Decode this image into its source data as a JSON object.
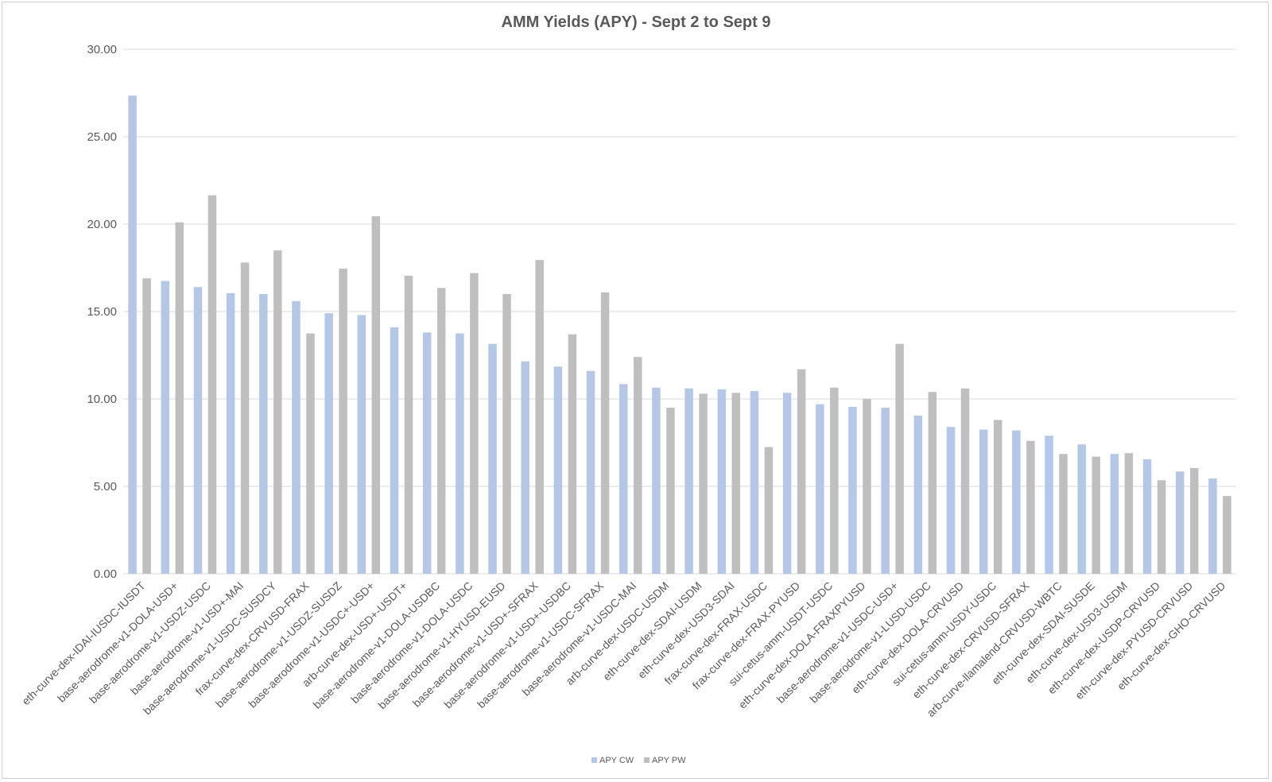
{
  "chart_data": {
    "type": "bar",
    "title": "AMM Yields (APY) - Sept 2 to Sept 9",
    "xlabel": "",
    "ylabel": "",
    "ylim": [
      0,
      30
    ],
    "yticks": [
      "0.00",
      "5.00",
      "10.00",
      "15.00",
      "20.00",
      "25.00",
      "30.00"
    ],
    "grid": true,
    "legend_position": "bottom",
    "categories": [
      "eth-curve-dex-IDAI-IUSDC-IUSDT",
      "base-aerodrome-v1-DOLA-USD+",
      "base-aerodrome-v1-USDZ-USDC",
      "base-aerodrome-v1-USD+-MAI",
      "base-aerodrome-v1-USDC-SUSDCY",
      "frax-curve-dex-CRVUSD-FRAX",
      "base-aerodrome-v1-USDZ-SUSDZ",
      "base-aerodrome-v1-USDC+-USD+",
      "arb-curve-dex-USD+-USDT+",
      "base-aerodrome-v1-DOLA-USDBC",
      "base-aerodrome-v1-DOLA-USDC",
      "base-aerodrome-v1-HYUSD-EUSD",
      "base-aerodrome-v1-USD+-SFRAX",
      "base-aerodrome-v1-USD+-USDBC",
      "base-aerodrome-v1-USDC-SFRAX",
      "base-aerodrome-v1-USDC-MAI",
      "arb-curve-dex-USDC-USDM",
      "eth-curve-dex-SDAI-USDM",
      "eth-curve-dex-USD3-SDAI",
      "frax-curve-dex-FRAX-USDC",
      "frax-curve-dex-FRAX-PYUSD",
      "sui-cetus-amm-USDT-USDC",
      "eth-curve-dex-DOLA-FRAXPYUSD",
      "base-aerodrome-v1-USDC-USD+",
      "base-aerodrome-v1-LUSD-USDC",
      "eth-curve-dex-DOLA-CRVUSD",
      "sui-cetus-amm-USDY-USDC",
      "eth-curve-dex-CRVUSD-SFRAX",
      "arb-curve-llamalend-CRVUSD-WBTC",
      "eth-curve-dex-SDAI-SUSDE",
      "eth-curve-dex-USD3-USDM",
      "eth-curve-dex-USDP-CRVUSD",
      "eth-curve-dex-PYUSD-CRVUSD",
      "eth-curve-dex-GHO-CRVUSD"
    ],
    "series": [
      {
        "name": "APY CW",
        "color": "#b4c7e7",
        "values": [
          27.35,
          16.75,
          16.4,
          16.05,
          16.0,
          15.6,
          14.9,
          14.8,
          14.1,
          13.8,
          13.75,
          13.15,
          12.15,
          11.85,
          11.6,
          10.85,
          10.65,
          10.6,
          10.55,
          10.45,
          10.35,
          9.7,
          9.55,
          9.5,
          9.05,
          8.4,
          8.25,
          8.2,
          7.9,
          7.4,
          6.85,
          6.55,
          5.85,
          5.45
        ]
      },
      {
        "name": "APY PW",
        "color": "#bfbfbf",
        "values": [
          16.9,
          20.1,
          21.65,
          17.8,
          18.5,
          13.75,
          17.45,
          20.45,
          17.05,
          16.35,
          17.2,
          16.0,
          17.95,
          13.7,
          16.1,
          12.4,
          9.5,
          10.3,
          10.35,
          7.25,
          11.7,
          10.65,
          10.0,
          13.15,
          10.4,
          10.6,
          8.8,
          7.6,
          6.85,
          6.7,
          6.9,
          5.35,
          6.05,
          4.45
        ]
      }
    ]
  }
}
